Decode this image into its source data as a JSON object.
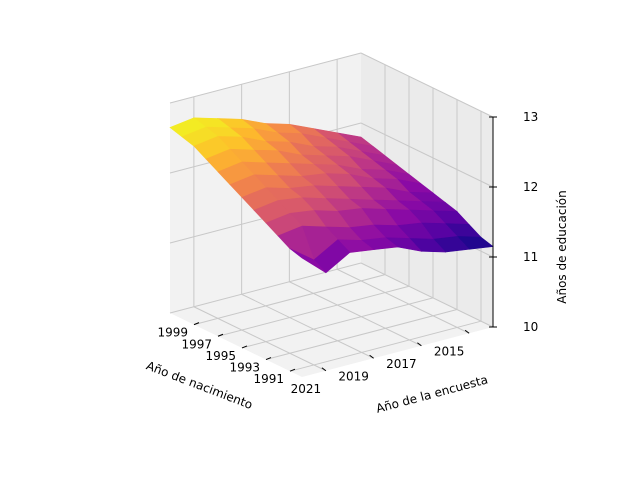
{
  "chart_data": {
    "type": "surface",
    "xlabel": "Año de nacimiento",
    "ylabel": "Año de la encuesta",
    "zlabel": "Años de educación",
    "x_ticks": [
      1991,
      1993,
      1995,
      1997,
      1999
    ],
    "y_ticks": [
      2015,
      2017,
      2019,
      2021
    ],
    "z_ticks": [
      10,
      11,
      12,
      13
    ],
    "xlim": [
      1990,
      2001
    ],
    "ylim": [
      2014,
      2022
    ],
    "zlim": [
      10,
      13
    ],
    "colormap": "plasma",
    "grid": true,
    "birth_years": [
      1990,
      1991,
      1992,
      1993,
      1994,
      1995,
      1996,
      1997,
      1998,
      1999,
      2000,
      2001
    ],
    "survey_years": [
      2014,
      2015,
      2016,
      2017,
      2018,
      2019,
      2020,
      2021,
      2022
    ],
    "z": [
      [
        11.15,
        11.2,
        11.25,
        11.35,
        11.5,
        11.55,
        11.6,
        11.4,
        11.7
      ],
      [
        11.2,
        11.3,
        11.35,
        11.45,
        11.55,
        11.6,
        11.7,
        11.5,
        11.75
      ],
      [
        11.3,
        11.4,
        11.5,
        11.55,
        11.65,
        11.7,
        11.8,
        11.9,
        11.85
      ],
      [
        11.4,
        11.5,
        11.6,
        11.7,
        11.8,
        11.85,
        11.95,
        12.0,
        11.95
      ],
      [
        11.45,
        11.55,
        11.65,
        11.75,
        11.85,
        11.95,
        12.05,
        12.1,
        12.05
      ],
      [
        11.5,
        11.6,
        11.75,
        11.85,
        11.95,
        12.05,
        12.1,
        12.2,
        12.15
      ],
      [
        11.55,
        11.7,
        11.8,
        11.95,
        12.05,
        12.1,
        12.2,
        12.3,
        12.25
      ],
      [
        11.6,
        11.75,
        11.85,
        12.0,
        12.1,
        12.2,
        12.3,
        12.4,
        12.35
      ],
      [
        11.65,
        11.8,
        11.95,
        12.05,
        12.15,
        12.3,
        12.4,
        12.5,
        12.45
      ],
      [
        11.7,
        11.85,
        12.0,
        12.1,
        12.25,
        12.35,
        12.5,
        12.6,
        12.55
      ],
      [
        11.75,
        11.9,
        12.05,
        12.2,
        12.3,
        12.45,
        12.55,
        12.65,
        12.6
      ],
      [
        11.8,
        11.95,
        12.1,
        12.25,
        12.35,
        12.5,
        12.6,
        12.7,
        12.65
      ]
    ]
  }
}
